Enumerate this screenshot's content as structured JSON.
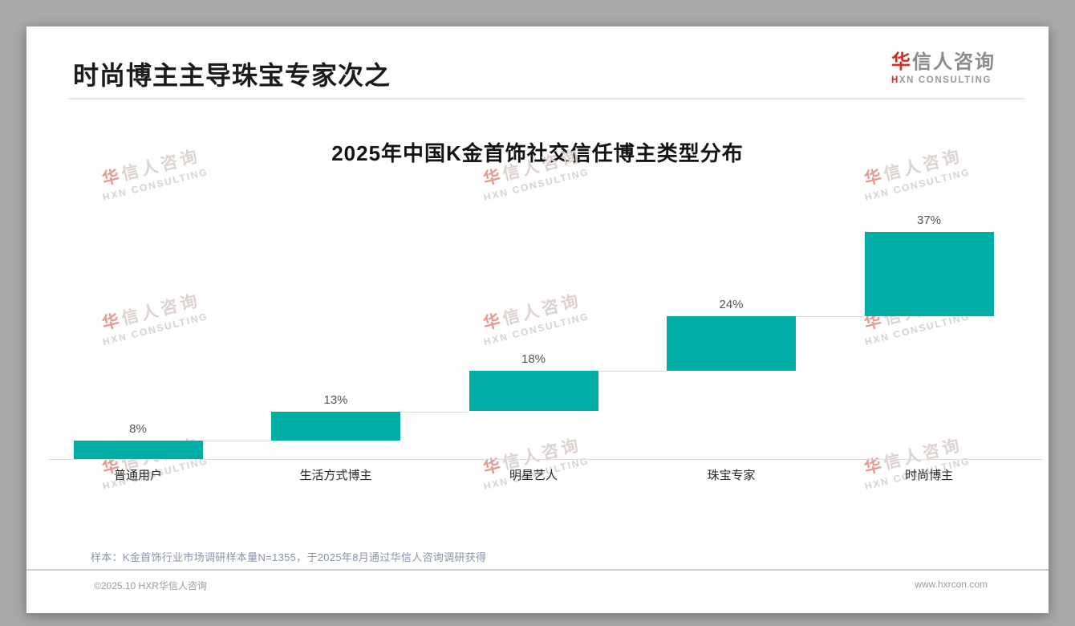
{
  "page": {
    "slide_title": "时尚博主主导珠宝专家次之",
    "logo": {
      "brand_zh_accent": "华",
      "brand_zh_rest": "信人咨询",
      "brand_en_accent": "H",
      "brand_en_rest": "XN CONSULTING"
    },
    "watermark": {
      "zh_accent": "华",
      "zh_rest": "信人咨询",
      "en": "HXN CONSULTING"
    },
    "footnote": "样本：K金首饰行业市场调研样本量N=1355，于2025年8月通过华信人咨询调研获得",
    "footer": {
      "left": "©2025.10 HXR华信人咨询",
      "right": "www.hxrcon.com"
    }
  },
  "colors": {
    "bar_teal": "#00AEA5",
    "accent_red": "#CF2E21",
    "page_bg": "#A9A9A9",
    "connector_gray": "#D8D8D8"
  },
  "chart_data": {
    "type": "bar",
    "subtype": "staircase-waterfall",
    "title": "2025年中国K金首饰社交信任博主类型分布",
    "categories": [
      "普通用户",
      "生活方式博主",
      "明星艺人",
      "珠宝专家",
      "时尚博主"
    ],
    "values": [
      8,
      13,
      18,
      24,
      37
    ],
    "data_labels": [
      "8%",
      "13%",
      "18%",
      "24%",
      "37%"
    ],
    "unit": "%",
    "ylim": [
      0,
      100
    ],
    "legend": null,
    "grid": false,
    "layout_hint": "each bar starts at the cumulative top of the previous bar; thin gray connector lines join successive steps; cumulative total reaches 100%"
  }
}
